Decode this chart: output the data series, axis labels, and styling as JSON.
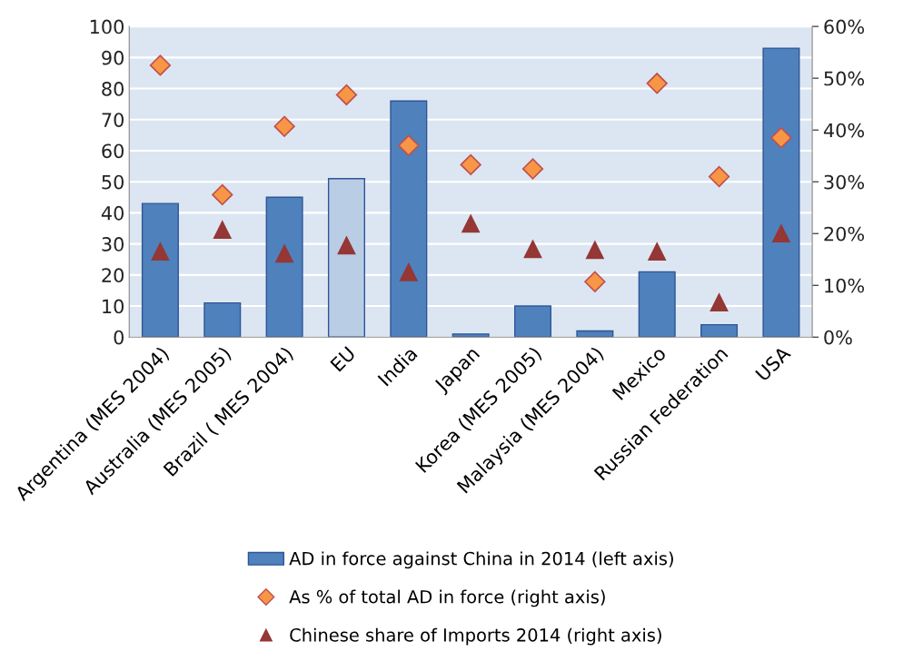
{
  "chart_data": {
    "type": "bar",
    "categories": [
      "Argentina (MES 2004)",
      "Australia (MES 2005)",
      "Brazil ( MES 2004)",
      "EU",
      "India",
      "Japan",
      "Korea (MES 2005)",
      "Malaysia (MES 2004)",
      "Mexico",
      "Russian Federation",
      "USA"
    ],
    "series": [
      {
        "name": "AD in force against China in 2014 (left axis)",
        "color": "#4f81bd",
        "colors": [
          "#4f81bd",
          "#4f81bd",
          "#4f81bd",
          "#b9cde5",
          "#4f81bd",
          "#4f81bd",
          "#4f81bd",
          "#4f81bd",
          "#4f81bd",
          "#4f81bd",
          "#4f81bd"
        ],
        "values": [
          43,
          11,
          45,
          51,
          76,
          1,
          10,
          2,
          21,
          4,
          93
        ]
      },
      {
        "name": "As % of total AD in force (right axis)",
        "type": "scatter",
        "axis": "y2",
        "marker": "diamond",
        "color": "#f79646",
        "values": [
          52.5,
          27.5,
          40.7,
          46.8,
          37,
          33.3,
          32.5,
          10.7,
          49,
          31,
          38.5
        ]
      },
      {
        "name": "Chinese share of Imports 2014 (right axis)",
        "type": "scatter",
        "axis": "y2",
        "marker": "triangle",
        "color": "#953735",
        "values": [
          16.5,
          20.7,
          16.1,
          17.7,
          12.5,
          21.9,
          17,
          16.8,
          16.5,
          6.7,
          20
        ]
      }
    ],
    "ylim": [
      0,
      100
    ],
    "yticks": [
      0,
      10,
      20,
      30,
      40,
      50,
      60,
      70,
      80,
      90,
      100
    ],
    "y2lim": [
      0,
      60
    ],
    "y2ticks": [
      {
        "value": 0,
        "label": "0%"
      },
      {
        "value": 10,
        "label": "10%"
      },
      {
        "value": 20,
        "label": "20%"
      },
      {
        "value": 30,
        "label": "30%"
      },
      {
        "value": 40,
        "label": "40%"
      },
      {
        "value": 50,
        "label": "50%"
      },
      {
        "value": 60,
        "label": "60%"
      }
    ],
    "grid": "y",
    "legend": "bottom"
  }
}
